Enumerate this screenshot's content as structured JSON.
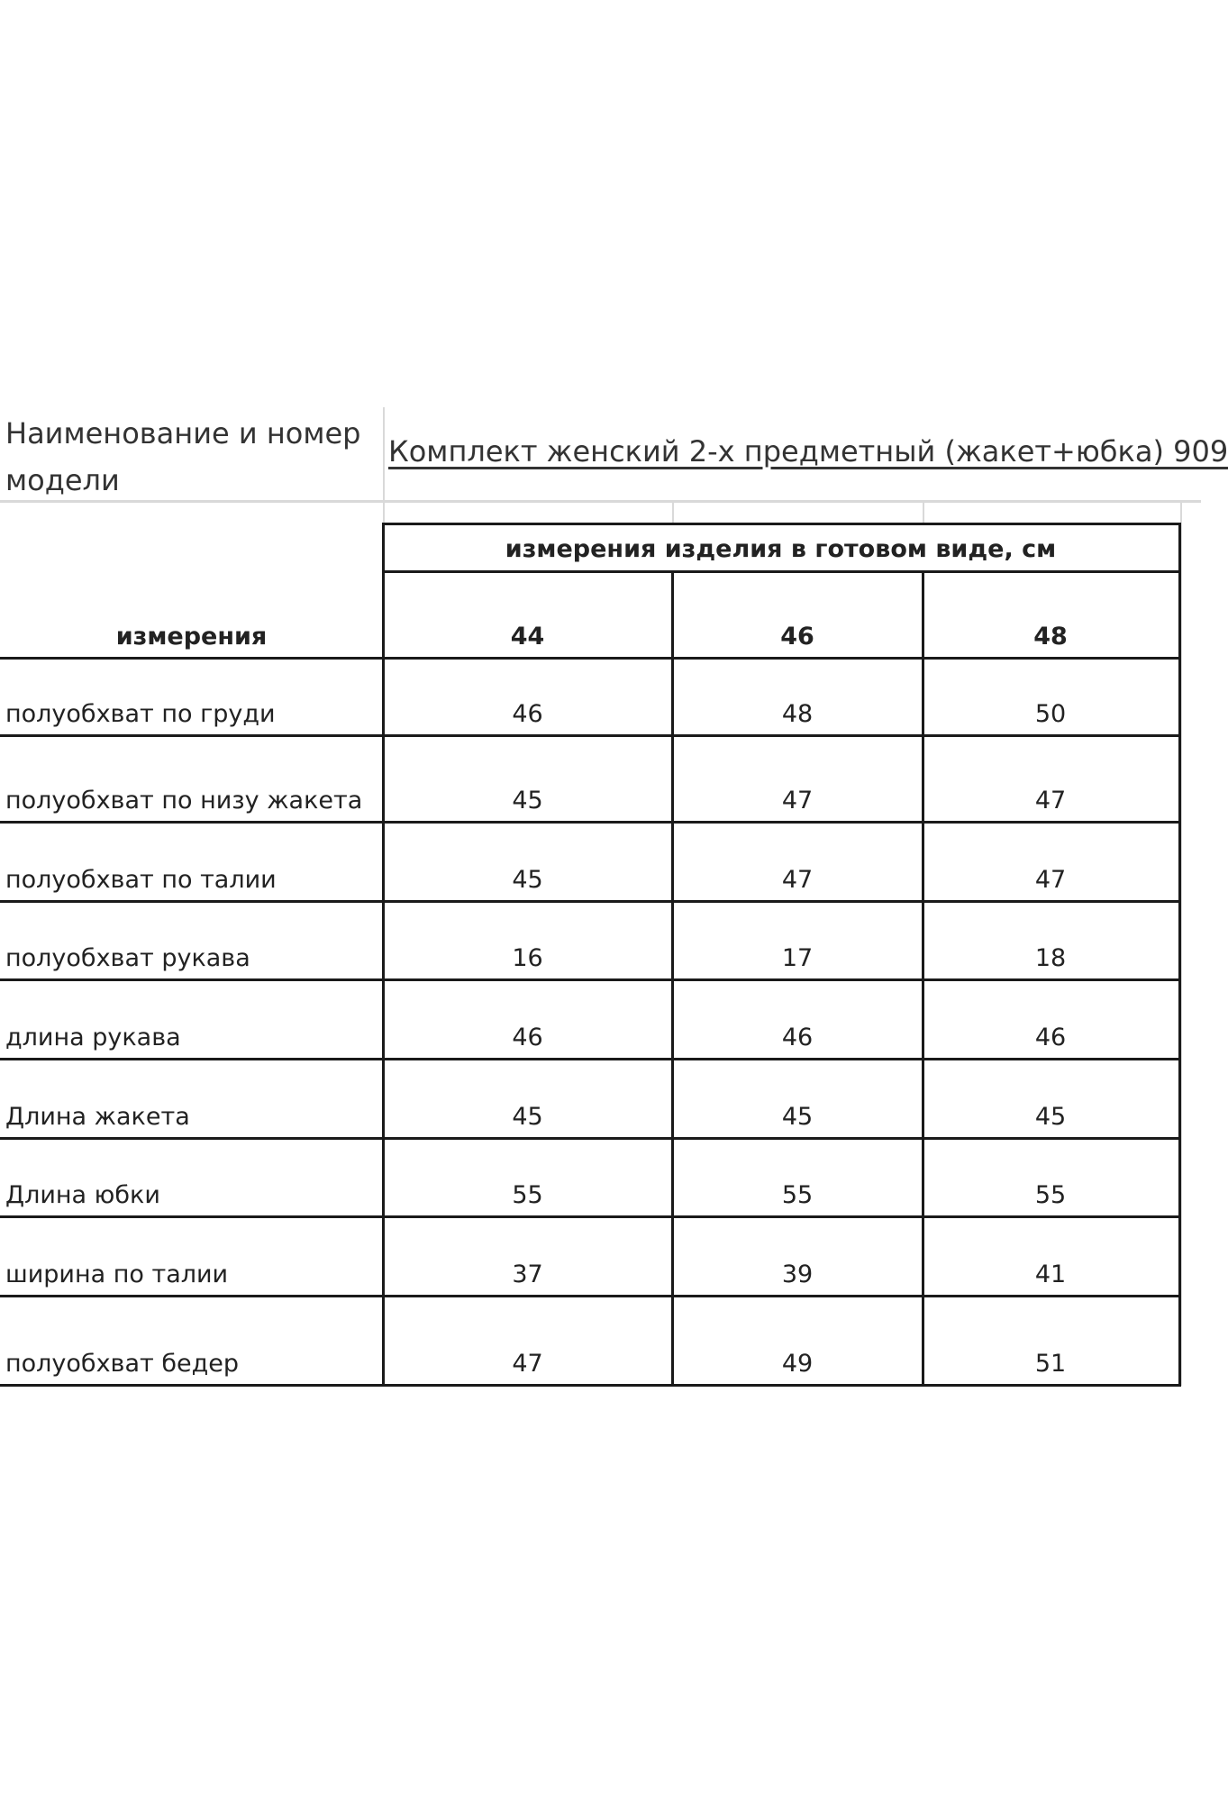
{
  "header": {
    "label": "Наименование и номер модели",
    "model_title": "Комплект женский 2-х предметный (жакет+юбка) 909"
  },
  "table": {
    "group_header": "измерения изделия в готовом виде, см",
    "measure_header": "измерения",
    "sizes": [
      "44",
      "46",
      "48"
    ],
    "rows": [
      {
        "label": "полуобхват по груди",
        "values": [
          "46",
          "48",
          "50"
        ]
      },
      {
        "label": "полуобхват по низу жакета",
        "values": [
          "45",
          "47",
          "47"
        ]
      },
      {
        "label": "полуобхват по талии",
        "values": [
          "45",
          "47",
          "47"
        ]
      },
      {
        "label": "полуобхват рукава",
        "values": [
          "16",
          "17",
          "18"
        ]
      },
      {
        "label": "длина рукава",
        "values": [
          "46",
          "46",
          "46"
        ]
      },
      {
        "label": "Длина жакета",
        "values": [
          "45",
          "45",
          "45"
        ]
      },
      {
        "label": "Длина юбки",
        "values": [
          "55",
          "55",
          "55"
        ]
      },
      {
        "label": "ширина по талии",
        "values": [
          "37",
          "39",
          "41"
        ]
      },
      {
        "label": "полуобхват бедер",
        "values": [
          "47",
          "49",
          "51"
        ]
      }
    ]
  }
}
